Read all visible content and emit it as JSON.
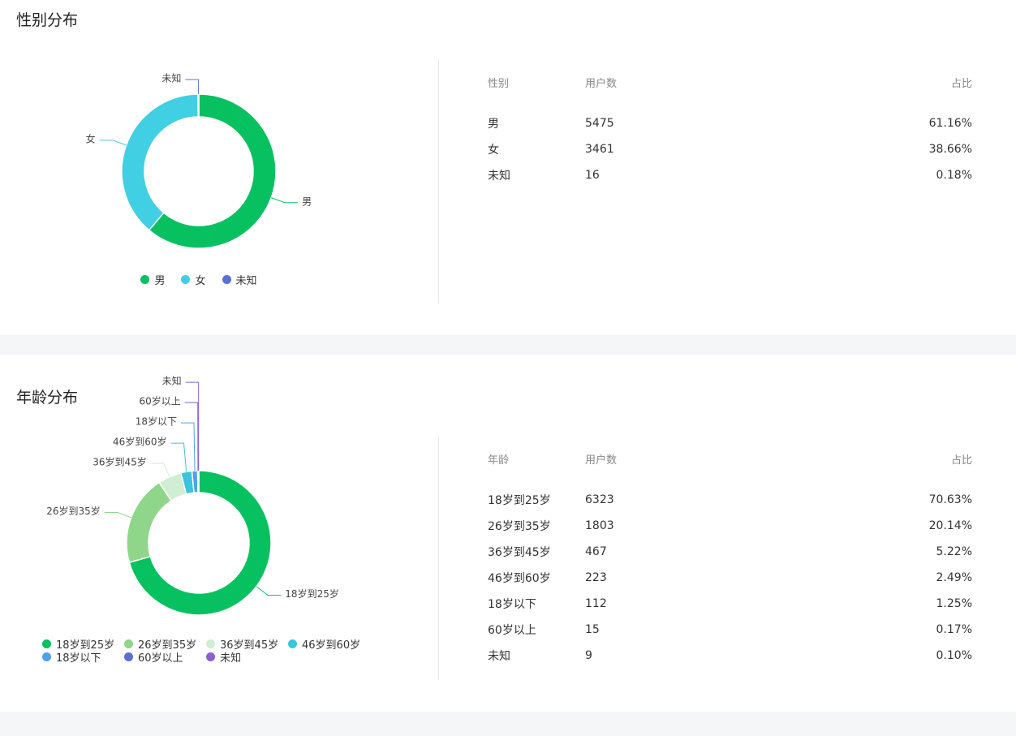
{
  "chart_data": [
    {
      "type": "pie",
      "title": "性别分布",
      "categories": [
        "男",
        "女",
        "未知"
      ],
      "values": [
        5475,
        3461,
        16
      ],
      "colors": [
        "#07c160",
        "#40cfe3",
        "#5b6fd0"
      ],
      "table": {
        "headers": [
          "性别",
          "用户数",
          "占比"
        ],
        "rows": [
          [
            "男",
            5475,
            "61.16%"
          ],
          [
            "女",
            3461,
            "38.66%"
          ],
          [
            "未知",
            16,
            "0.18%"
          ]
        ]
      }
    },
    {
      "type": "pie",
      "title": "年龄分布",
      "categories": [
        "18岁到25岁",
        "26岁到35岁",
        "36岁到45岁",
        "46岁到60岁",
        "18岁以下",
        "60岁以上",
        "未知"
      ],
      "values": [
        6323,
        1803,
        467,
        223,
        112,
        15,
        9
      ],
      "colors": [
        "#07c160",
        "#8fd68b",
        "#cfeed3",
        "#3bc4dc",
        "#4ea1ea",
        "#5b6fd0",
        "#8c5fd0"
      ],
      "table": {
        "headers": [
          "年龄",
          "用户数",
          "占比"
        ],
        "rows": [
          [
            "18岁到25岁",
            6323,
            "70.63%"
          ],
          [
            "26岁到35岁",
            1803,
            "20.14%"
          ],
          [
            "36岁到45岁",
            467,
            "5.22%"
          ],
          [
            "46岁到60岁",
            223,
            "2.49%"
          ],
          [
            "18岁以下",
            112,
            "1.25%"
          ],
          [
            "60岁以上",
            15,
            "0.17%"
          ],
          [
            "未知",
            9,
            "0.10%"
          ]
        ]
      }
    }
  ]
}
